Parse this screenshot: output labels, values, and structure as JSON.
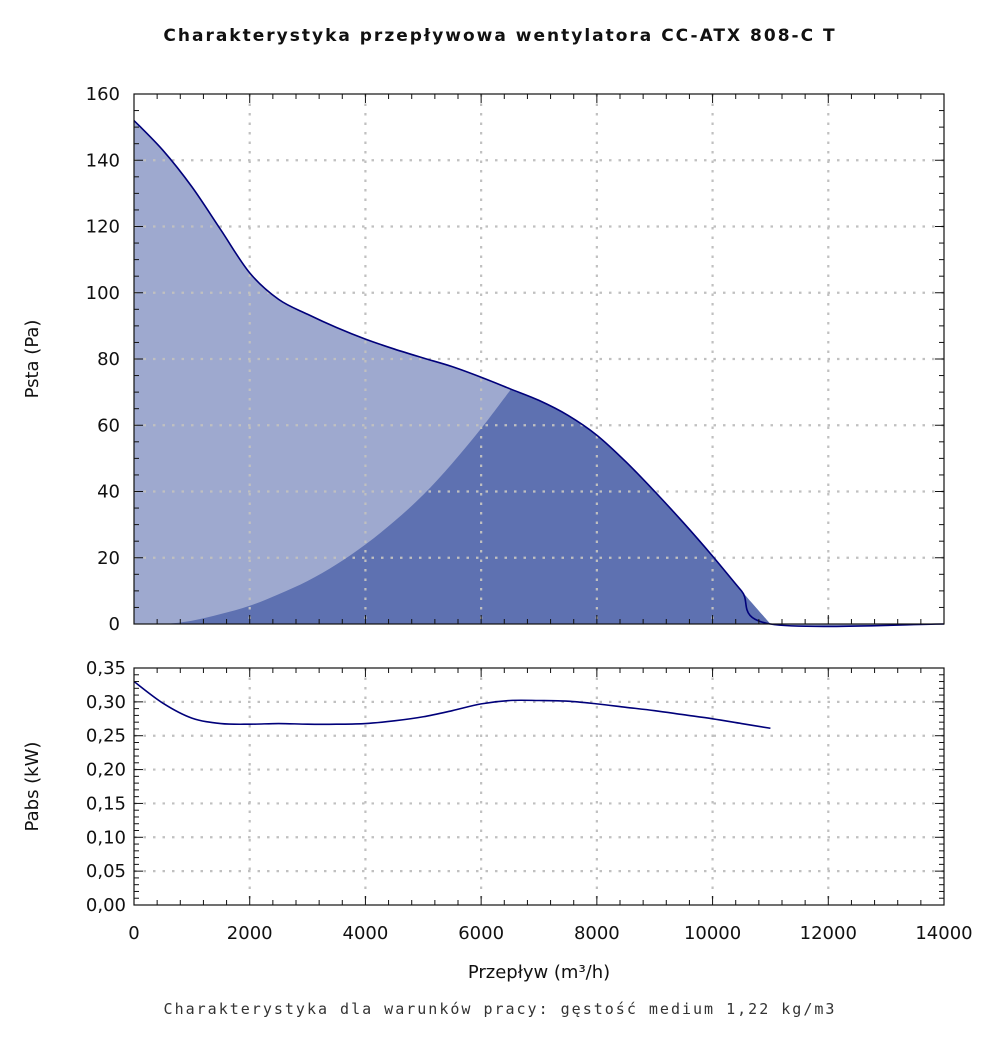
{
  "chart_data": [
    {
      "type": "area",
      "title": "Charakterystyka przepływowa wentylatora CC-ATX 808-C T",
      "xlabel": "",
      "ylabel": "Psta (Pa)",
      "xlim": [
        0,
        14000
      ],
      "ylim": [
        0,
        160
      ],
      "grid": true,
      "x_ticks": [
        0,
        2000,
        4000,
        6000,
        8000,
        10000,
        12000,
        14000
      ],
      "y_ticks": [
        0,
        20,
        40,
        60,
        80,
        100,
        120,
        140,
        160
      ],
      "y_tick_labels": [
        "0",
        "20",
        "40",
        "60",
        "80",
        "100",
        "120",
        "140",
        "160"
      ],
      "colors": {
        "curve": "#00007a",
        "light_fill": "#9ea9cf",
        "dark_fill": "#5e71b1",
        "grid": "#c0c0c0"
      },
      "series": [
        {
          "values_role": "fan_curve",
          "x": [
            0,
            500,
            1000,
            1500,
            2000,
            2500,
            3000,
            3500,
            4000,
            4500,
            5000,
            5500,
            6000,
            6500,
            7000,
            7500,
            8000,
            8500,
            9000,
            9500,
            10000,
            10500,
            11000,
            14000
          ],
          "y": [
            152,
            143,
            132,
            119,
            106,
            98,
            93.5,
            89.5,
            86,
            83,
            80.3,
            77.7,
            74.5,
            71,
            67.5,
            63,
            57,
            49,
            40,
            30.5,
            20.5,
            10,
            0,
            0
          ]
        },
        {
          "values_role": "system_curve",
          "x": [
            0,
            500,
            1000,
            1500,
            2000,
            2500,
            3000,
            3500,
            4000,
            4500,
            5000,
            5500,
            6000,
            6500
          ],
          "y": [
            0,
            0,
            1,
            3,
            5.5,
            9,
            13,
            18,
            24,
            31,
            39,
            48.5,
            59,
            70.5
          ]
        }
      ]
    },
    {
      "type": "line",
      "xlabel": "Przepływ (m³/h)",
      "ylabel": "Pabs (kW)",
      "xlim": [
        0,
        14000
      ],
      "ylim": [
        0,
        0.35
      ],
      "grid": true,
      "x_ticks": [
        0,
        2000,
        4000,
        6000,
        8000,
        10000,
        12000,
        14000
      ],
      "x_tick_labels": [
        "0",
        "2000",
        "4000",
        "6000",
        "8000",
        "10000",
        "12000",
        "14000"
      ],
      "y_ticks": [
        0,
        0.05,
        0.1,
        0.15,
        0.2,
        0.25,
        0.3,
        0.35
      ],
      "y_tick_labels": [
        "0,00",
        "0,05",
        "0,10",
        "0,15",
        "0,20",
        "0,25",
        "0,30",
        "0,35"
      ],
      "colors": {
        "curve": "#00007a",
        "grid": "#c0c0c0"
      },
      "series": [
        {
          "x": [
            0,
            500,
            1000,
            1500,
            2000,
            2500,
            3000,
            3500,
            4000,
            4500,
            5000,
            5500,
            6000,
            6500,
            7000,
            7500,
            8000,
            8500,
            9000,
            9500,
            10000,
            10500,
            11000
          ],
          "y": [
            0.33,
            0.298,
            0.276,
            0.268,
            0.267,
            0.268,
            0.267,
            0.267,
            0.268,
            0.272,
            0.278,
            0.287,
            0.297,
            0.302,
            0.302,
            0.301,
            0.297,
            0.292,
            0.287,
            0.281,
            0.275,
            0.268,
            0.261
          ]
        }
      ]
    }
  ],
  "footer": "Charakterystyka dla warunków pracy: gęstość medium 1,22 kg/m3"
}
